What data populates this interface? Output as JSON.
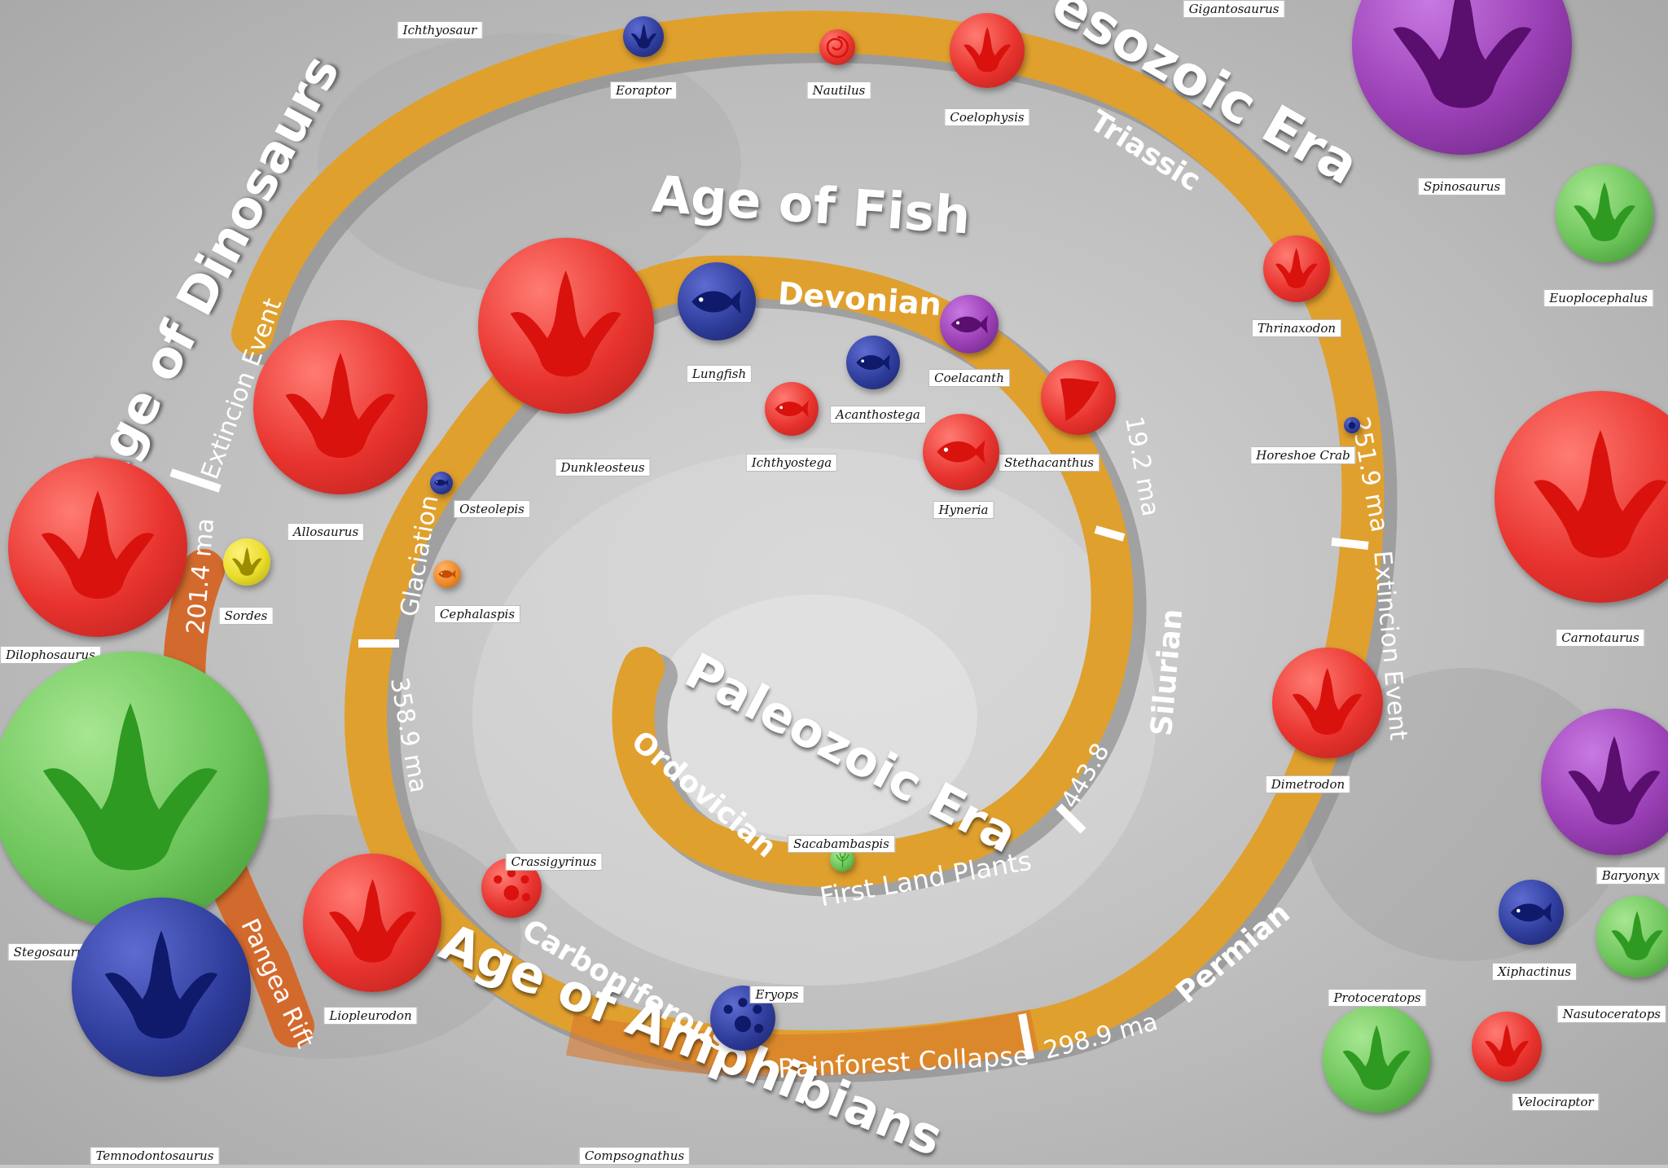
{
  "titles": {
    "age_of_dinosaurs": "Age of Dinosaurs",
    "age_of_fish": "Age of Fish",
    "age_of_amphibians": "Age of Amphibians",
    "paleozoic_era": "Paleozoic Era",
    "mesozoic_era": "esozoic Era"
  },
  "segments": {
    "devonian": "Devonian",
    "silurian": "Silurian",
    "ordovician": "Ordovician",
    "first_land_plants": "First Land Plants",
    "carboniferous": "Carboniferous",
    "rainforest_collapse": "Rainforest Collapse",
    "permian": "Permian",
    "triassic": "Triassic",
    "glaciation": "Glaciation",
    "extinction_event_left": "Extincion Event",
    "extinction_event_right": "Extincion Event",
    "pangea_rift": "Pangea Rift",
    "ma_358": "358.9 ma",
    "ma_298": "298.9 ma",
    "ma_443": "443.8",
    "ma_419": "19.2 ma",
    "ma_251": "251.9 ma",
    "ma_201": "201.4 ma"
  },
  "colors": {
    "red": "#e8332e",
    "green": "#6cc45a",
    "blue": "#2f3d9c",
    "purple": "#9a3fb5",
    "yellow": "#e9dc2a",
    "orange": "#ee8a2a",
    "band_orange": "#d7782b",
    "band_gold": "#e6ad2a"
  },
  "creatures": [
    {
      "name": "Ichthyosaur"
    },
    {
      "name": "Eoraptor",
      "color": "blue",
      "icon": "footprint-icon"
    },
    {
      "name": "Nautilus",
      "color": "red",
      "icon": "shell-icon"
    },
    {
      "name": "Coelophysis",
      "color": "red",
      "icon": "footprint-icon"
    },
    {
      "name": "Gigantosaurus"
    },
    {
      "name": "Spinosaurus",
      "color": "purple",
      "icon": "footprint-icon"
    },
    {
      "name": "Euoplocephalus",
      "color": "green",
      "icon": "footprint-icon"
    },
    {
      "name": "Thrinaxodon",
      "color": "red",
      "icon": "footprint-icon"
    },
    {
      "name": "Horeshoe Crab",
      "color": "blue",
      "icon": "crab-icon"
    },
    {
      "name": "Lungfish",
      "color": "blue",
      "icon": "fish-icon"
    },
    {
      "name": "Coelacanth",
      "color": "purple",
      "icon": "fish-icon"
    },
    {
      "name": "Acanthostega",
      "color": "blue",
      "icon": "fish-icon"
    },
    {
      "name": "Ichthyostega",
      "color": "red",
      "icon": "fish-icon"
    },
    {
      "name": "Stethacanthus",
      "color": "red",
      "icon": "tooth-icon"
    },
    {
      "name": "Hyneria",
      "color": "red",
      "icon": "fish-icon"
    },
    {
      "name": "Dunkleosteus",
      "color": "red",
      "icon": "footprint-icon"
    },
    {
      "name": "Allosaurus",
      "color": "red",
      "icon": "footprint-icon"
    },
    {
      "name": "Osteolepis",
      "color": "blue",
      "icon": "fish-icon"
    },
    {
      "name": "Cephalaspis",
      "color": "orange",
      "icon": "fish-icon"
    },
    {
      "name": "Sordes",
      "color": "yellow",
      "icon": "footprint-icon"
    },
    {
      "name": "Dilophosaurus",
      "color": "red",
      "icon": "footprint-icon"
    },
    {
      "name": "Carnotaurus",
      "color": "red",
      "icon": "footprint-icon"
    },
    {
      "name": "Dimetrodon",
      "color": "red",
      "icon": "footprint-icon"
    },
    {
      "name": "Baryonyx",
      "color": "purple",
      "icon": "footprint-icon"
    },
    {
      "name": "Sacabambaspis",
      "color": "green",
      "icon": "plant-icon"
    },
    {
      "name": "Crassigyrinus",
      "color": "red",
      "icon": "frog-print-icon"
    },
    {
      "name": "Stegosaurus",
      "color": "green",
      "icon": "footprint-icon"
    },
    {
      "name": "Liopleurodon",
      "color": "red",
      "icon": "footprint-icon"
    },
    {
      "name": "Eryops",
      "color": "blue",
      "icon": "frog-print-icon"
    },
    {
      "name": "Xiphactinus",
      "color": "blue",
      "icon": "fish-icon"
    },
    {
      "name": "Protoceratops",
      "color": "green",
      "icon": "footprint-icon"
    },
    {
      "name": "Nasutoceratops",
      "color": "green",
      "icon": "footprint-icon"
    },
    {
      "name": "Velociraptor",
      "color": "red",
      "icon": "footprint-icon"
    },
    {
      "name": "Temnodontosaurus",
      "color": "blue",
      "icon": "footprint-icon"
    },
    {
      "name": "Compsognathus"
    }
  ]
}
